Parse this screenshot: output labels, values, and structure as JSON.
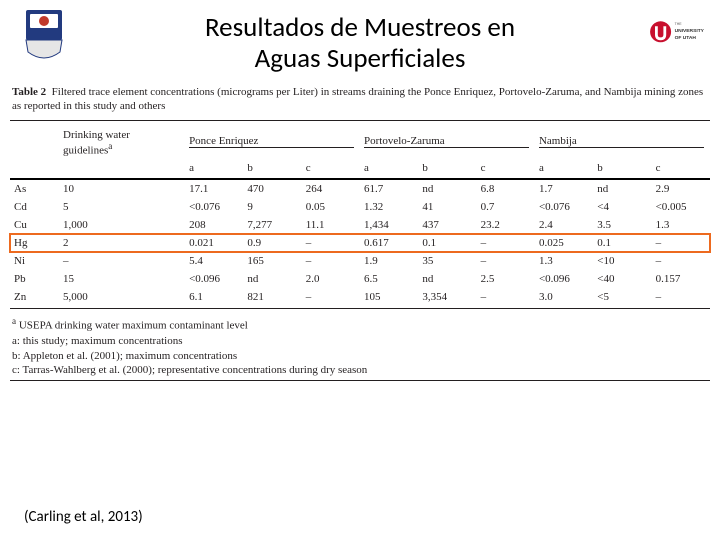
{
  "title": {
    "line1": "Resultados de Muestreos en",
    "line2": "Aguas Superficiales"
  },
  "logos": {
    "left_shield_bg": "#223a7f",
    "left_shield_accent": "#c0392b",
    "right_u_color": "#c8102e",
    "right_text1": "THE",
    "right_text2": "UNIVERSITY",
    "right_text3": "OF UTAH"
  },
  "table": {
    "caption_prefix": "Table 2",
    "caption_body": "Filtered trace element concentrations (micrograms per Liter) in streams draining the Ponce Enriquez, Portovelo-Zaruma, and Nambija mining zones as reported in this study and others",
    "header": {
      "dwg_label": "Drinking water guidelines",
      "dwg_sup": "a",
      "groups": [
        "Ponce Enriquez",
        "Portovelo-Zaruma",
        "Nambija"
      ],
      "subcols": [
        "a",
        "b",
        "c"
      ]
    },
    "highlight_element": "Hg",
    "highlight_color": "#ed6a1f",
    "rows": [
      {
        "el": "As",
        "dwg": "10",
        "v": [
          "17.1",
          "470",
          "264",
          "61.7",
          "nd",
          "6.8",
          "1.7",
          "nd",
          "2.9"
        ]
      },
      {
        "el": "Cd",
        "dwg": "5",
        "v": [
          "<0.076",
          "9",
          "0.05",
          "1.32",
          "41",
          "0.7",
          "<0.076",
          "<4",
          "<0.005"
        ]
      },
      {
        "el": "Cu",
        "dwg": "1,000",
        "v": [
          "208",
          "7,277",
          "11.1",
          "1,434",
          "437",
          "23.2",
          "2.4",
          "3.5",
          "1.3"
        ]
      },
      {
        "el": "Hg",
        "dwg": "2",
        "v": [
          "0.021",
          "0.9",
          "–",
          "0.617",
          "0.1",
          "–",
          "0.025",
          "0.1",
          "–"
        ]
      },
      {
        "el": "Ni",
        "dwg": "–",
        "v": [
          "5.4",
          "165",
          "–",
          "1.9",
          "35",
          "–",
          "1.3",
          "<10",
          "–"
        ]
      },
      {
        "el": "Pb",
        "dwg": "15",
        "v": [
          "<0.096",
          "nd",
          "2.0",
          "6.5",
          "nd",
          "2.5",
          "<0.096",
          "<40",
          "0.157"
        ]
      },
      {
        "el": "Zn",
        "dwg": "5,000",
        "v": [
          "6.1",
          "821",
          "–",
          "105",
          "3,354",
          "–",
          "3.0",
          "<5",
          "–"
        ]
      }
    ],
    "footnotes": [
      "a USEPA drinking water maximum contaminant level",
      "a: this study; maximum concentrations",
      "b: Appleton et al. (2001); maximum concentrations",
      "c: Tarras-Wahlberg et al. (2000); representative concentrations during dry season"
    ]
  },
  "citation": "(Carling et al, 2013)",
  "colors": {
    "text": "#231f20",
    "rule": "#231f20",
    "background": "#ffffff"
  },
  "font": {
    "table_family": "Times New Roman",
    "table_size_pt": 11,
    "title_family": "Calibri",
    "title_size_pt": 27
  }
}
